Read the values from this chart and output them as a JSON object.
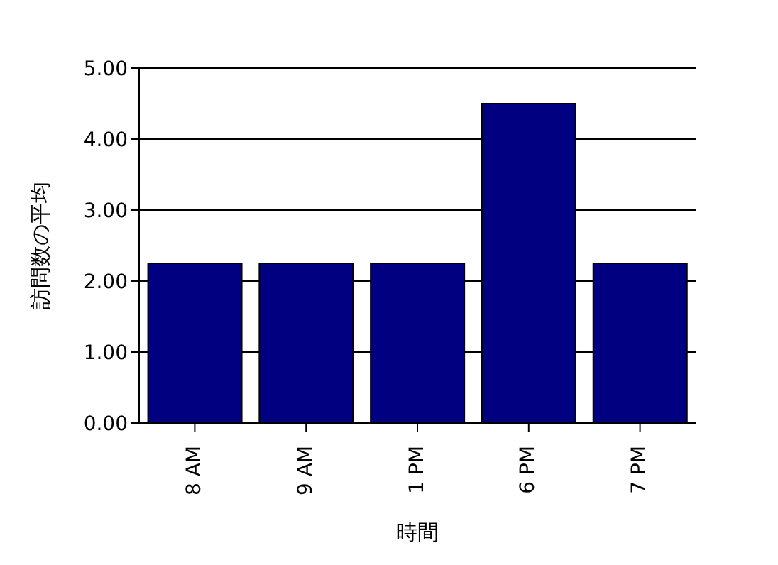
{
  "chart_data": {
    "type": "bar",
    "xlabel": "時間",
    "ylabel": "訪問数の平均",
    "categories": [
      "8 AM",
      "9 AM",
      "1 PM",
      "6 PM",
      "7 PM"
    ],
    "values": [
      2.25,
      2.25,
      2.25,
      4.5,
      2.25
    ],
    "color": "#000080",
    "ylim": [
      0,
      5
    ],
    "yticks": [
      {
        "value": 0,
        "label": "0.00"
      },
      {
        "value": 1,
        "label": "1.00"
      },
      {
        "value": 2,
        "label": "2.00"
      },
      {
        "value": 3,
        "label": "3.00"
      },
      {
        "value": 4,
        "label": "4.00"
      },
      {
        "value": 5,
        "label": "5.00"
      }
    ],
    "grid": "y",
    "legend": false
  }
}
